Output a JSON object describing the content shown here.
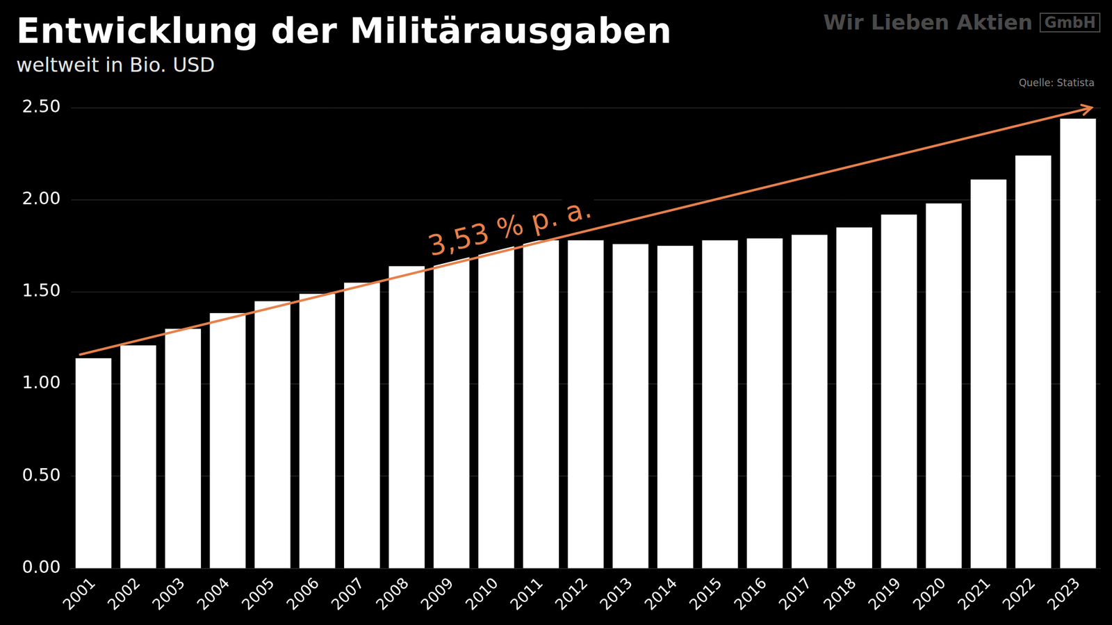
{
  "chart_data": {
    "type": "bar",
    "title": "Entwicklung der Militärausgaben",
    "subtitle": "weltweit in Bio. USD",
    "source": "Quelle: Statista",
    "brand": "Wir Lieben Aktien",
    "brand_suffix": "GmbH",
    "categories": [
      "2001",
      "2002",
      "2003",
      "2004",
      "2005",
      "2006",
      "2007",
      "2008",
      "2009",
      "2010",
      "2011",
      "2012",
      "2013",
      "2014",
      "2015",
      "2016",
      "2017",
      "2018",
      "2019",
      "2020",
      "2021",
      "2022",
      "2023"
    ],
    "values": [
      1.14,
      1.21,
      1.3,
      1.385,
      1.45,
      1.49,
      1.55,
      1.64,
      1.76,
      1.77,
      1.78,
      1.78,
      1.76,
      1.75,
      1.78,
      1.79,
      1.81,
      1.85,
      1.92,
      1.98,
      2.11,
      2.24,
      2.44
    ],
    "color": "#ffffff",
    "ylim": [
      0,
      2.5
    ],
    "yticks": [
      {
        "value": 0,
        "label": "0.00"
      },
      {
        "value": 0.5,
        "label": "0.50"
      },
      {
        "value": 1,
        "label": "1.00"
      },
      {
        "value": 1.5,
        "label": "1.50"
      },
      {
        "value": 2,
        "label": "2.00"
      },
      {
        "value": 2.5,
        "label": "2.50"
      }
    ],
    "grid": true,
    "annotation": {
      "text": "3,53 % p. a.",
      "color": "#e8804a",
      "start": {
        "x": "2001",
        "y": 1.16
      },
      "end": {
        "x": "2023",
        "y": 2.5
      }
    }
  }
}
